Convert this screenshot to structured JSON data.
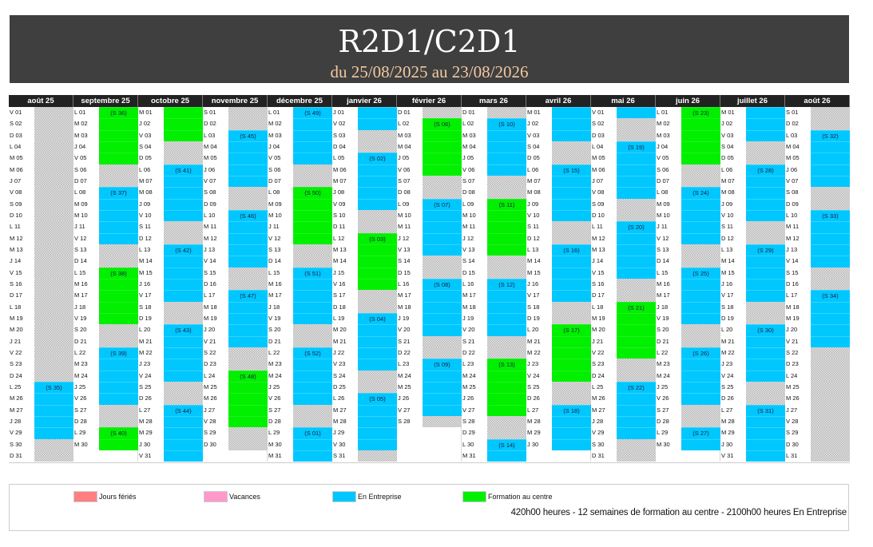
{
  "header": {
    "title": "R2D1/C2D1",
    "subtitle": "du 25/08/2025 au 23/08/2026"
  },
  "colors": {
    "b": "#00c8ff",
    "g": "#00f000",
    "feries": "#ff8080",
    "vacances": "#ff99cc"
  },
  "months": [
    {
      "name": "août 25",
      "status": "xxxxxxxxxxxxxxxxxxxxxxxxbbbbbxx",
      "weeks": {
        "25": "(S 35)"
      },
      "days": [
        "V 01",
        "S 02",
        "D 03",
        "L 04",
        "M 05",
        "M 06",
        "J 07",
        "V 08",
        "S 09",
        "D 10",
        "L 11",
        "M 12",
        "M 13",
        "J 14",
        "V 15",
        "S 16",
        "D 17",
        "L 18",
        "M 19",
        "M 20",
        "J 21",
        "V 22",
        "S 23",
        "D 24",
        "L 25",
        "M 26",
        "M 27",
        "J 28",
        "V 29",
        "S 30",
        "D 31"
      ]
    },
    {
      "name": "septembre 25",
      "status": "gggggxxbbbbbxxgggggxxbbbbbxxgg",
      "weeks": {
        "1": "(S 36)",
        "8": "(S 37)",
        "15": "(S 38)",
        "22": "(S 39)",
        "29": "(S 40)"
      },
      "days": [
        "L 01",
        "M 02",
        "M 03",
        "J 04",
        "V 05",
        "S 06",
        "D 07",
        "L 08",
        "M 09",
        "M 10",
        "J 11",
        "V 12",
        "S 13",
        "D 14",
        "L 15",
        "M 16",
        "M 17",
        "J 18",
        "V 19",
        "S 20",
        "D 21",
        "L 22",
        "M 23",
        "M 24",
        "J 25",
        "V 26",
        "S 27",
        "D 28",
        "L 29",
        "M 30"
      ]
    },
    {
      "name": "octobre 25",
      "status": "gggxxbbbbbxxbbbbbxxbbbbbxxbbbbb",
      "weeks": {
        "6": "(S 41)",
        "13": "(S 42)",
        "20": "(S 43)",
        "27": "(S 44)"
      },
      "days": [
        "M 01",
        "J 02",
        "V 03",
        "S 04",
        "D 05",
        "L 06",
        "M 07",
        "M 08",
        "J 09",
        "V 10",
        "S 11",
        "D 12",
        "L 13",
        "M 14",
        "M 15",
        "J 16",
        "V 17",
        "S 18",
        "D 19",
        "L 20",
        "M 21",
        "M 22",
        "J 23",
        "V 24",
        "S 25",
        "D 26",
        "L 27",
        "M 28",
        "M 29",
        "J 30",
        "V 31"
      ]
    },
    {
      "name": "novembre 25",
      "status": "xxbbbbbxxbbbbbxxbbbbbxxgggggxx",
      "weeks": {
        "3": "(S 45)",
        "10": "(S 46)",
        "17": "(S 47)",
        "24": "(S 48)"
      },
      "days": [
        "S 01",
        "D 02",
        "L 03",
        "M 04",
        "M 05",
        "J 06",
        "V 07",
        "S 08",
        "D 09",
        "L 10",
        "M 11",
        "M 12",
        "J 13",
        "V 14",
        "S 15",
        "D 16",
        "L 17",
        "M 18",
        "M 19",
        "J 20",
        "V 21",
        "S 22",
        "D 23",
        "L 24",
        "M 25",
        "M 26",
        "J 27",
        "V 28",
        "S 29",
        "D 30"
      ]
    },
    {
      "name": "décembre 25",
      "status": "bbbbbxxgggggxxbbbbbxxbbbbbxxbbb",
      "weeks": {
        "1": "(S 49)",
        "8": "(S 50)",
        "15": "(S 51)",
        "22": "(S 52)",
        "29": "(S 01)"
      },
      "days": [
        "L 01",
        "M 02",
        "M 03",
        "J 04",
        "V 05",
        "S 06",
        "D 07",
        "L 08",
        "M 09",
        "M 10",
        "J 11",
        "V 12",
        "S 13",
        "D 14",
        "L 15",
        "M 16",
        "M 17",
        "J 18",
        "V 19",
        "S 20",
        "D 21",
        "L 22",
        "M 23",
        "M 24",
        "J 25",
        "V 26",
        "S 27",
        "D 28",
        "L 29",
        "M 30",
        "M 31"
      ]
    },
    {
      "name": "janvier 26",
      "status": "bbxxbbbbbxxgggggxxbbbbbxxbbbbbx",
      "weeks": {
        "5": "(S 02)",
        "12": "(S 03)",
        "19": "(S 04)",
        "26": "(S 05)"
      },
      "days": [
        "J 01",
        "V 02",
        "S 03",
        "D 04",
        "L 05",
        "M 06",
        "M 07",
        "J 08",
        "V 09",
        "S 10",
        "D 11",
        "L 12",
        "M 13",
        "M 14",
        "J 15",
        "V 16",
        "S 17",
        "D 18",
        "L 19",
        "M 20",
        "M 21",
        "J 22",
        "V 23",
        "S 24",
        "D 25",
        "L 26",
        "M 27",
        "M 28",
        "J 29",
        "V 30",
        "S 31"
      ]
    },
    {
      "name": "février 26",
      "status": "xgggggxxbbbbbxxbbbbbxxbbbbbx",
      "weeks": {
        "2": "(S 06)",
        "9": "(S 07)",
        "16": "(S 08)",
        "23": "(S 09)"
      },
      "days": [
        "D 01",
        "L 02",
        "M 03",
        "M 04",
        "J 05",
        "V 06",
        "S 07",
        "D 08",
        "L 09",
        "M 10",
        "M 11",
        "J 12",
        "V 13",
        "S 14",
        "D 15",
        "L 16",
        "M 17",
        "M 18",
        "J 19",
        "V 20",
        "S 21",
        "D 22",
        "L 23",
        "M 24",
        "M 25",
        "J 26",
        "V 27",
        "S 28"
      ]
    },
    {
      "name": "mars 26",
      "status": "xbbbbbxxgggggxxbbbbbxxgggggxxbb",
      "weeks": {
        "2": "(S 10)",
        "9": "(S 11)",
        "16": "(S 12)",
        "23": "(S 13)",
        "30": "(S 14)"
      },
      "days": [
        "D 01",
        "L 02",
        "M 03",
        "M 04",
        "J 05",
        "V 06",
        "S 07",
        "D 08",
        "L 09",
        "M 10",
        "M 11",
        "J 12",
        "V 13",
        "S 14",
        "D 15",
        "L 16",
        "M 17",
        "M 18",
        "J 19",
        "V 20",
        "S 21",
        "D 22",
        "L 23",
        "M 24",
        "M 25",
        "J 26",
        "V 27",
        "S 28",
        "D 29",
        "L 30",
        "M 31"
      ]
    },
    {
      "name": "avril 26",
      "status": "bbbxxbbbbbxxbbbbbxxgggggxxbbbb",
      "weeks": {
        "6": "(S 15)",
        "13": "(S 16)",
        "20": "(S 17)",
        "27": "(S 18)"
      },
      "days": [
        "M 01",
        "J 02",
        "V 03",
        "S 04",
        "D 05",
        "L 06",
        "M 07",
        "M 08",
        "J 09",
        "V 10",
        "S 11",
        "D 12",
        "L 13",
        "M 14",
        "M 15",
        "J 16",
        "V 17",
        "S 18",
        "D 19",
        "L 20",
        "M 21",
        "M 22",
        "J 23",
        "V 24",
        "S 25",
        "D 26",
        "L 27",
        "M 28",
        "M 29",
        "J 30"
      ]
    },
    {
      "name": "mai 26",
      "status": "bxxbbbbbxxbbbbbxxgggggxxbbbbbxx",
      "weeks": {
        "4": "(S 19)",
        "11": "(S 20)",
        "18": "(S 21)",
        "25": "(S 22)"
      },
      "days": [
        "V 01",
        "S 02",
        "D 03",
        "L 04",
        "M 05",
        "M 06",
        "J 07",
        "V 08",
        "S 09",
        "D 10",
        "L 11",
        "M 12",
        "M 13",
        "J 14",
        "V 15",
        "S 16",
        "D 17",
        "L 18",
        "M 19",
        "M 20",
        "J 21",
        "V 22",
        "S 23",
        "D 24",
        "L 25",
        "M 26",
        "M 27",
        "J 28",
        "V 29",
        "S 30",
        "D 31"
      ]
    },
    {
      "name": "juin 26",
      "status": "gggggxxbbbbbxxbbbbbxxbbbbbxxbb",
      "weeks": {
        "1": "(S 23)",
        "8": "(S 24)",
        "15": "(S 25)",
        "22": "(S 26)",
        "29": "(S 27)"
      },
      "days": [
        "L 01",
        "M 02",
        "M 03",
        "J 04",
        "V 05",
        "S 06",
        "D 07",
        "L 08",
        "M 09",
        "M 10",
        "J 11",
        "V 12",
        "S 13",
        "D 14",
        "L 15",
        "M 16",
        "M 17",
        "J 18",
        "V 19",
        "S 20",
        "D 21",
        "L 22",
        "M 23",
        "M 24",
        "J 25",
        "V 26",
        "S 27",
        "D 28",
        "L 29",
        "M 30"
      ]
    },
    {
      "name": "juillet 26",
      "status": "bbbxxbbbbbxxbbbbbxxbbbbbxxbbbbb",
      "weeks": {
        "6": "(S 28)",
        "13": "(S 29)",
        "20": "(S 30)",
        "27": "(S 31)"
      },
      "days": [
        "M 01",
        "J 02",
        "V 03",
        "S 04",
        "D 05",
        "L 06",
        "M 07",
        "M 08",
        "J 09",
        "V 10",
        "S 11",
        "D 12",
        "L 13",
        "M 14",
        "M 15",
        "J 16",
        "V 17",
        "S 18",
        "D 19",
        "L 20",
        "M 21",
        "M 22",
        "J 23",
        "V 24",
        "S 25",
        "D 26",
        "L 27",
        "M 28",
        "M 29",
        "J 30",
        "V 31"
      ]
    },
    {
      "name": "août 26",
      "status": "xxbbbbbxxbbbbbxxbbbbbxxxxxxxxxx",
      "weeks": {
        "3": "(S 32)",
        "10": "(S 33)",
        "17": "(S 34)"
      },
      "days": [
        "S 01",
        "D 02",
        "L 03",
        "M 04",
        "M 05",
        "J 06",
        "V 07",
        "S 08",
        "D 09",
        "L 10",
        "M 11",
        "M 12",
        "J 13",
        "V 14",
        "S 15",
        "D 16",
        "L 17",
        "M 18",
        "M 19",
        "J 20",
        "V 21",
        "S 22",
        "D 23",
        "L 24",
        "M 25",
        "M 26",
        "J 27",
        "V 28",
        "S 29",
        "D 30",
        "L 31"
      ]
    }
  ],
  "legend": {
    "items": [
      {
        "label": "Jours fériés",
        "color": "#ff8080"
      },
      {
        "label": "Vacances",
        "color": "#ff99cc"
      },
      {
        "label": "En Entreprise",
        "color": "#00c8ff"
      },
      {
        "label": "Formation au centre",
        "color": "#00f000"
      }
    ],
    "summary": "420h00 heures - 12 semaines de formation au centre - 2100h00 heures En Entreprise"
  }
}
